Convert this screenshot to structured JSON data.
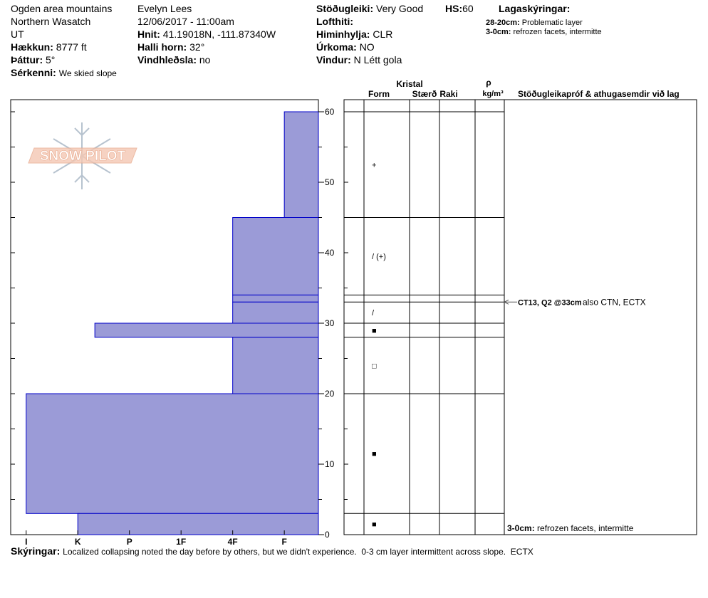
{
  "header": {
    "location": "Ogden area mountains",
    "range": "Northern Wasatch",
    "state": "UT",
    "elevation": {
      "label": "Hækkun:",
      "value": "8777 ft"
    },
    "aspect": {
      "label": "Þáttur:",
      "value": "5°"
    },
    "features": {
      "label": "Sérkenni:",
      "value": "We skied slope"
    },
    "observer": "Evelyn Lees",
    "datetime": "12/06/2017 - 11:00am",
    "coords": {
      "label": "Hnit:",
      "value": "41.19018N, -111.87340W"
    },
    "slope": {
      "label": "Halli horn:",
      "value": "32°"
    },
    "wind_loading": {
      "label": "Vindhleðsla:",
      "value": "no"
    },
    "stability": {
      "label": "Stöðugleiki:",
      "value": "Very Good"
    },
    "hs": {
      "label": "HS:",
      "value": "60"
    },
    "air_temp": {
      "label": "Lofthiti:"
    },
    "sky": {
      "label": "Himinhylja:",
      "value": "CLR"
    },
    "precip": {
      "label": "Úrkoma:",
      "value": "NO"
    },
    "wind": {
      "label": "Vindur:",
      "value": "N Létt gola"
    },
    "layer_notes": {
      "title": "Lagaskýringar:",
      "items": [
        {
          "label": "28-20cm:",
          "value": "Problematic layer"
        },
        {
          "label": "3-0cm:",
          "value": "refrozen facets, intermitte"
        }
      ]
    }
  },
  "logo": "SNOW PILOT",
  "table_headers": {
    "crystal": "Kristal",
    "form": "Form",
    "size": "Stærð",
    "moisture": "Raki",
    "density_symbol": "ρ",
    "density_unit": "kg/m³",
    "comments": "Stöðugleikapróf & athugasemdir við lag"
  },
  "chart_data": {
    "type": "snow-profile",
    "color": "#9b9bd7",
    "edge_color": "#0000c8",
    "ylim": [
      0,
      60
    ],
    "yticks": [
      0,
      10,
      20,
      30,
      40,
      50,
      60
    ],
    "xlim": [
      6.3,
      0.34
    ],
    "xticks": [
      {
        "value": 6,
        "label": "I"
      },
      {
        "value": 5,
        "label": "K"
      },
      {
        "value": 4,
        "label": "P"
      },
      {
        "value": 3,
        "label": "1F"
      },
      {
        "value": 2,
        "label": "4F"
      },
      {
        "value": 1,
        "label": "F"
      }
    ],
    "layers": [
      {
        "top": 60,
        "bottom": 45,
        "hardness": 1,
        "form": "+"
      },
      {
        "top": 45,
        "bottom": 34,
        "hardness": 2,
        "form": "/ (+)"
      },
      {
        "top": 34,
        "bottom": 33,
        "hardness": 2,
        "form": null
      },
      {
        "top": 33,
        "bottom": 30,
        "hardness": 2,
        "form": "/"
      },
      {
        "top": 30,
        "bottom": 28,
        "hardness": 4.67,
        "form": "■"
      },
      {
        "top": 28,
        "bottom": 20,
        "hardness": 2,
        "form": "□"
      },
      {
        "top": 20,
        "bottom": 3,
        "hardness": 6,
        "form": "■"
      },
      {
        "top": 3,
        "bottom": 0,
        "hardness": 5,
        "form": "■"
      }
    ],
    "stability_test": {
      "depth": 33,
      "label": "CT13, Q2 @33cm",
      "note": "also CTN, ECTX"
    }
  },
  "bottom_note": {
    "label": "3-0cm:",
    "value": "refrozen facets, intermitte"
  },
  "footer": {
    "label": "Skýringar:",
    "value": "Localized collapsing noted the day before by others, but we didn't experience.  0-3 cm layer intermittent across slope.  ECTX"
  }
}
